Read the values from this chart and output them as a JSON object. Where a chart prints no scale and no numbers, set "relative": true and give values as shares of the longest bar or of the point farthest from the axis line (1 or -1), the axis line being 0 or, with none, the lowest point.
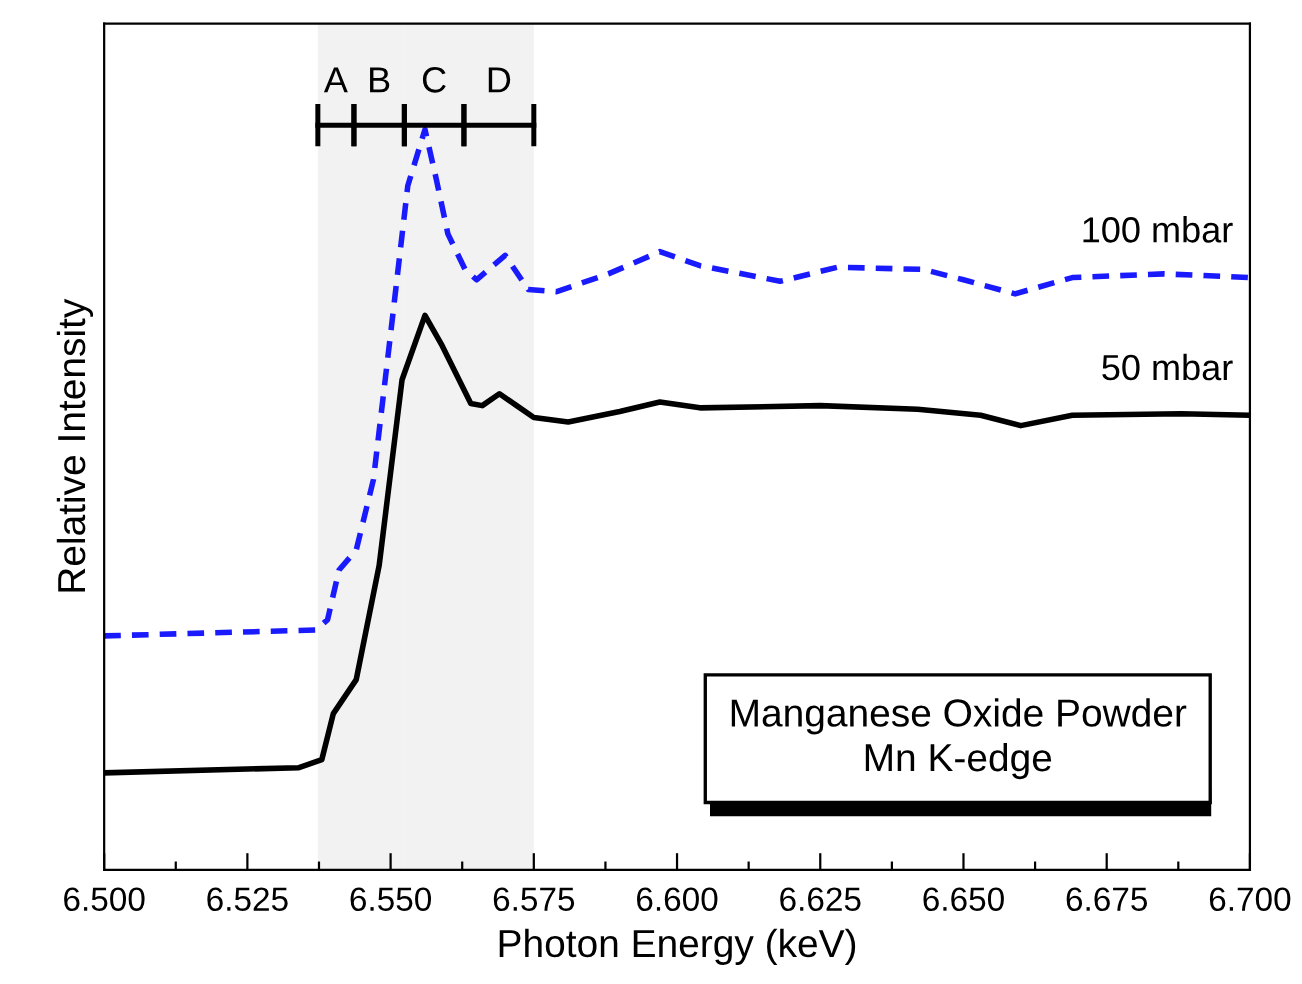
{
  "chart_data": {
    "type": "line",
    "relative": true,
    "xlabel": "Photon Energy (keV)",
    "ylabel": "Relative Intensity",
    "xlim": [
      6.5,
      6.7
    ],
    "xticks": [
      {
        "value": 6.5,
        "label": "6.500"
      },
      {
        "value": 6.5125,
        "label": null
      },
      {
        "value": 6.525,
        "label": "6.525"
      },
      {
        "value": 6.5375,
        "label": null
      },
      {
        "value": 6.55,
        "label": "6.550"
      },
      {
        "value": 6.5625,
        "label": null
      },
      {
        "value": 6.575,
        "label": "6.575"
      },
      {
        "value": 6.5875,
        "label": null
      },
      {
        "value": 6.6,
        "label": "6.600"
      },
      {
        "value": 6.6125,
        "label": null
      },
      {
        "value": 6.625,
        "label": "6.625"
      },
      {
        "value": 6.6375,
        "label": null
      },
      {
        "value": 6.65,
        "label": "6.650"
      },
      {
        "value": 6.6625,
        "label": null
      },
      {
        "value": 6.675,
        "label": "6.675"
      },
      {
        "value": 6.6875,
        "label": null
      },
      {
        "value": 6.7,
        "label": "6.700"
      }
    ],
    "grid": false,
    "legend": false,
    "series": [
      {
        "name": "100 mbar",
        "color": "#1a1aff",
        "line_style": "dashed",
        "x": [
          6.5,
          6.537,
          6.539,
          6.541,
          6.544,
          6.547,
          6.55,
          6.553,
          6.556,
          6.558,
          6.56,
          6.563,
          6.565,
          6.57,
          6.574,
          6.579,
          6.588,
          6.597,
          6.604,
          6.618,
          6.628,
          6.643,
          6.65,
          6.659,
          6.669,
          6.685,
          6.7
        ],
        "values": [
          0.316,
          0.324,
          0.338,
          0.405,
          0.432,
          0.527,
          0.724,
          0.924,
          1.0,
          0.932,
          0.859,
          0.811,
          0.797,
          0.83,
          0.784,
          0.781,
          0.805,
          0.835,
          0.816,
          0.795,
          0.814,
          0.811,
          0.797,
          0.778,
          0.8,
          0.805,
          0.8
        ]
      },
      {
        "name": "50 mbar",
        "color": "#000000",
        "line_style": "solid",
        "x": [
          6.5,
          6.534,
          6.538,
          6.54,
          6.544,
          6.548,
          6.552,
          6.556,
          6.559,
          6.564,
          6.566,
          6.569,
          6.572,
          6.575,
          6.581,
          6.59,
          6.597,
          6.604,
          6.625,
          6.642,
          6.653,
          6.66,
          6.669,
          6.688,
          6.7
        ],
        "values": [
          0.131,
          0.138,
          0.149,
          0.211,
          0.257,
          0.411,
          0.662,
          0.749,
          0.708,
          0.63,
          0.627,
          0.643,
          0.627,
          0.611,
          0.605,
          0.619,
          0.632,
          0.624,
          0.627,
          0.622,
          0.614,
          0.6,
          0.614,
          0.616,
          0.614
        ]
      }
    ],
    "bands": [
      {
        "axis": "x",
        "from": 6.5373,
        "to": 6.5436,
        "label": "A"
      },
      {
        "axis": "x",
        "from": 6.5436,
        "to": 6.5524,
        "label": "B"
      },
      {
        "axis": "x",
        "from": 6.5524,
        "to": 6.5628,
        "label": "C"
      },
      {
        "axis": "x",
        "from": 6.5628,
        "to": 6.575,
        "label": "D"
      }
    ],
    "annotations": [
      "Manganese Oxide Powder\nMn K-edge"
    ]
  }
}
